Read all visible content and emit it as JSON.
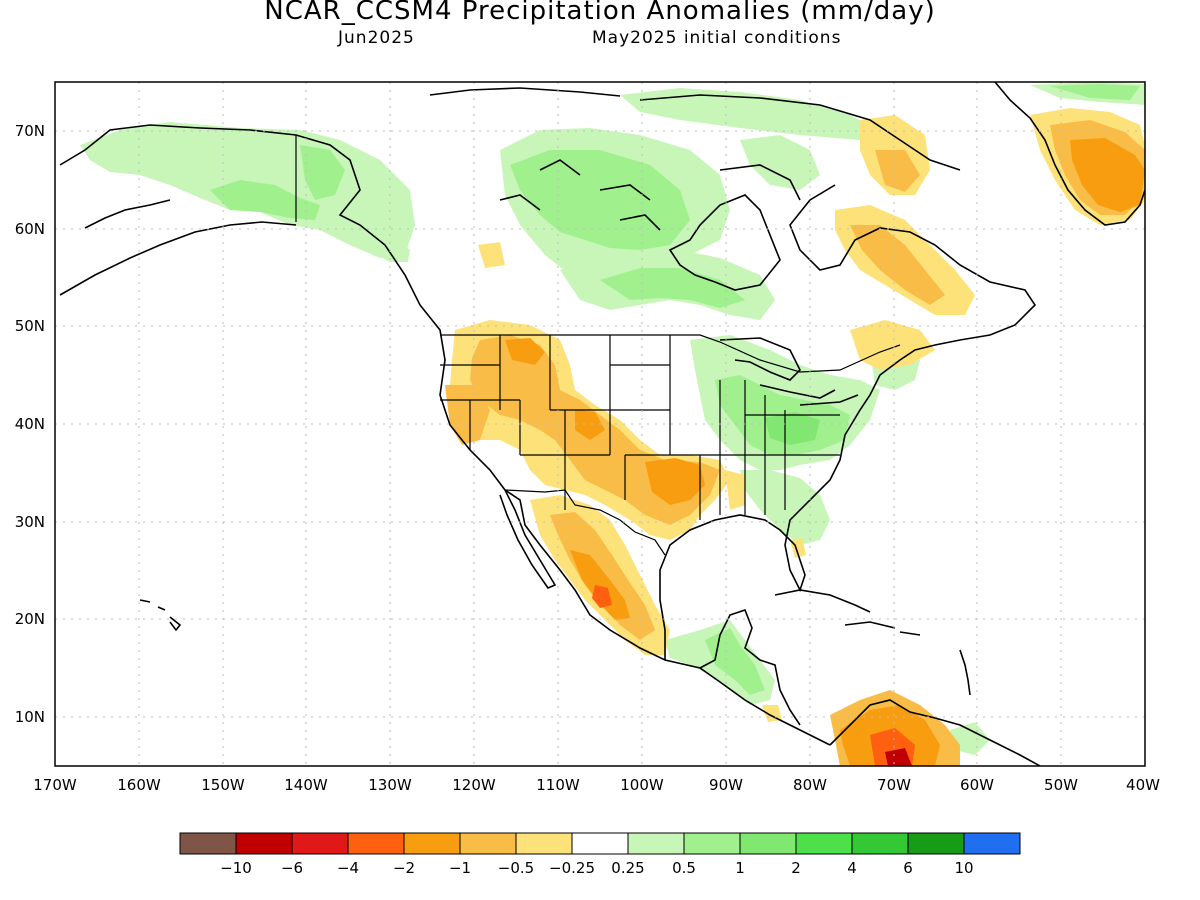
{
  "header": {
    "title": "NCAR_CCSM4 Precipitation Anomalies (mm/day)",
    "valid_month": "Jun2025",
    "init": "May2025 initial conditions"
  },
  "axes": {
    "lon_range": [
      -170,
      -40
    ],
    "lat_range": [
      5,
      75
    ],
    "lon_ticks": [
      "170W",
      "160W",
      "150W",
      "140W",
      "130W",
      "120W",
      "110W",
      "100W",
      "90W",
      "80W",
      "70W",
      "60W",
      "50W",
      "40W"
    ],
    "lat_ticks": [
      "10N",
      "20N",
      "30N",
      "40N",
      "50N",
      "60N",
      "70N"
    ],
    "grid": "dotted"
  },
  "colorbar": {
    "colors": [
      "#7f5547",
      "#c00000",
      "#e01818",
      "#ff6010",
      "#f89c10",
      "#f9bd47",
      "#fde27a",
      "#ffffff",
      "#c8f5b8",
      "#a0f08e",
      "#80e870",
      "#4ee04a",
      "#34c834",
      "#169c16",
      "#1f6ff0"
    ],
    "labels": [
      "−10",
      "−6",
      "−4",
      "−2",
      "−1",
      "−0.5",
      "−0.25",
      "0.25",
      "0.5",
      "1",
      "2",
      "4",
      "6",
      "10"
    ]
  },
  "legend_colors": {
    "dry_light": "#fde27a",
    "dry_mid": "#f9bd47",
    "dry": "#f89c10",
    "dry_strong": "#ff6010",
    "dry_extreme": "#c00000",
    "wet_light": "#c8f5b8",
    "wet_mid": "#a0f08e",
    "wet": "#80e870"
  }
}
